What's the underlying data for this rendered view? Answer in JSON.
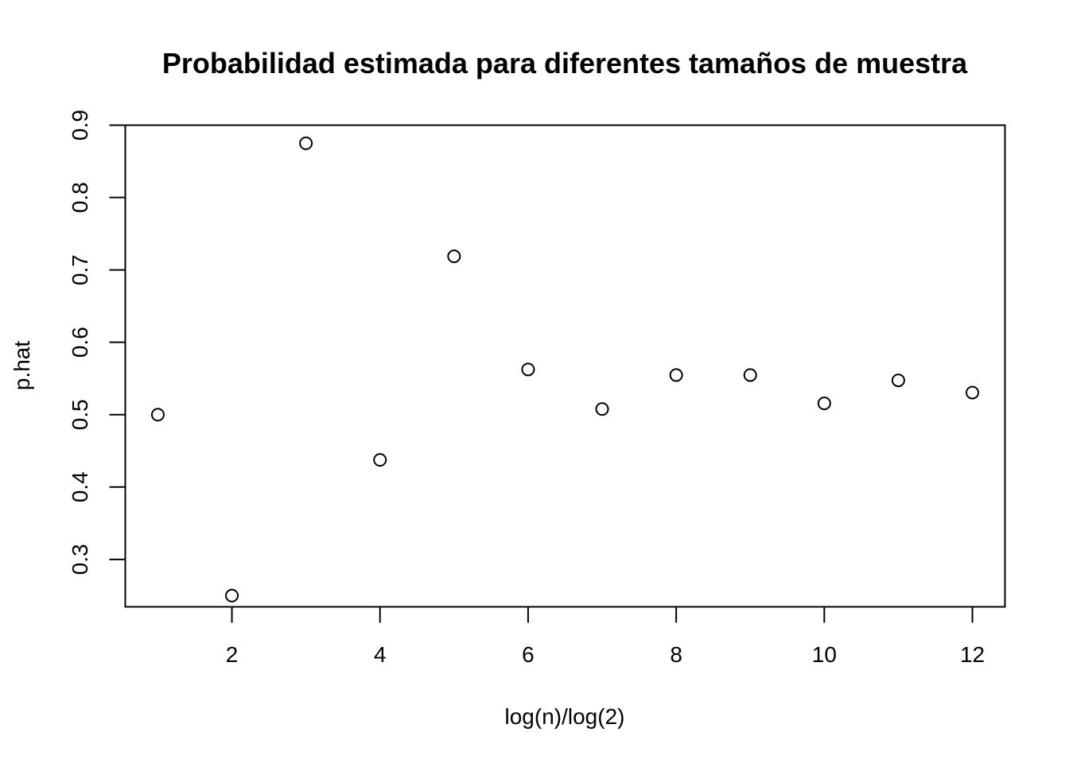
{
  "chart_data": {
    "type": "scatter",
    "title": "Probabilidad estimada para diferentes tamaños de muestra",
    "xlabel": "log(n)/log(2)",
    "ylabel": "p.hat",
    "xlim": [
      0.56,
      12.44
    ],
    "ylim": [
      0.2345,
      0.9
    ],
    "x_ticks": [
      2,
      4,
      6,
      8,
      10,
      12
    ],
    "y_ticks": [
      0.3,
      0.4,
      0.5,
      0.6,
      0.7,
      0.8,
      0.9
    ],
    "x_tick_labels": [
      "2",
      "4",
      "6",
      "8",
      "10",
      "12"
    ],
    "y_tick_labels": [
      "0.3",
      "0.4",
      "0.5",
      "0.6",
      "0.7",
      "0.8",
      "0.9"
    ],
    "grid": false,
    "marker": "open-circle",
    "marker_color": "#000000",
    "series": [
      {
        "x": [
          1,
          2,
          3,
          4,
          5,
          6,
          7,
          8,
          9,
          10,
          11,
          12
        ],
        "y": [
          0.5,
          0.25,
          0.875,
          0.4375,
          0.71875,
          0.5625,
          0.5078,
          0.5547,
          0.5547,
          0.5156,
          0.5474,
          0.5305
        ]
      }
    ]
  }
}
